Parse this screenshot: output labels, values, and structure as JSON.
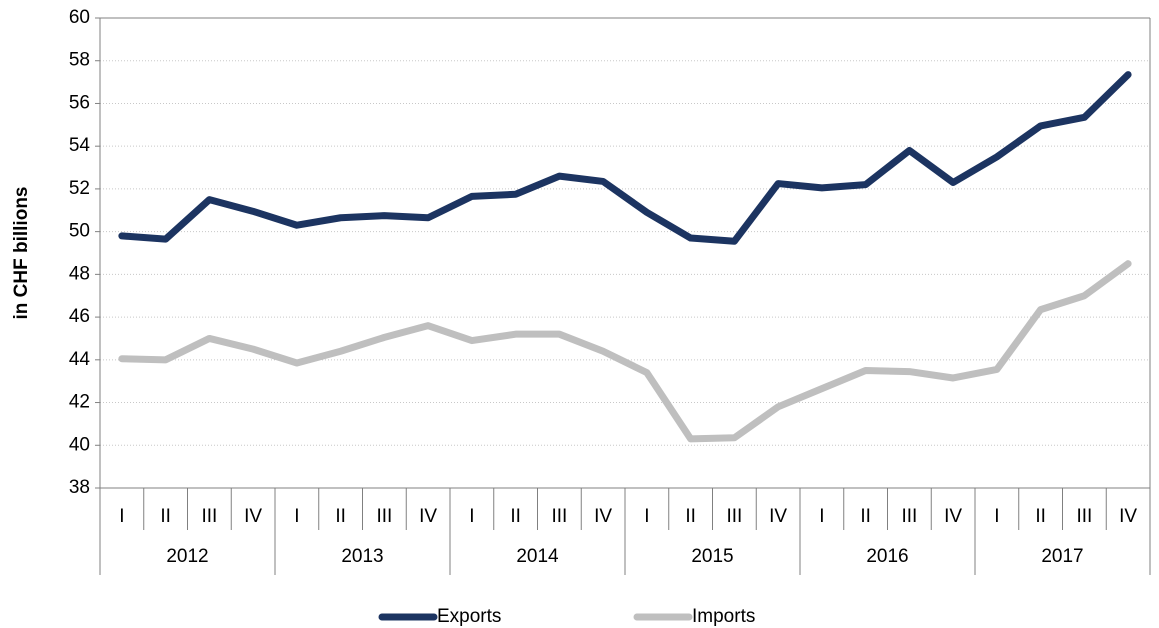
{
  "chart_data": {
    "type": "line",
    "y_label": "in CHF billions",
    "categories": [
      "I",
      "II",
      "III",
      "IV",
      "I",
      "II",
      "III",
      "IV",
      "I",
      "II",
      "III",
      "IV",
      "I",
      "II",
      "III",
      "IV",
      "I",
      "II",
      "III",
      "IV",
      "I",
      "II",
      "III",
      "IV"
    ],
    "years": [
      "2012",
      "2013",
      "2014",
      "2015",
      "2016",
      "2017"
    ],
    "series": [
      {
        "name": "Exports",
        "color": "#1c3461",
        "values": [
          49.8,
          49.65,
          51.5,
          50.95,
          50.3,
          50.65,
          50.75,
          50.65,
          51.65,
          51.75,
          52.6,
          52.35,
          50.9,
          49.7,
          49.55,
          52.25,
          52.05,
          52.2,
          53.8,
          52.3,
          53.5,
          54.95,
          55.35,
          57.35
        ]
      },
      {
        "name": "Imports",
        "color": "#bfbfbf",
        "values": [
          44.05,
          44.0,
          45.0,
          44.5,
          43.85,
          44.4,
          45.05,
          45.6,
          44.9,
          45.2,
          45.2,
          44.4,
          43.4,
          40.3,
          40.35,
          41.8,
          42.65,
          43.5,
          43.45,
          43.15,
          43.55,
          46.35,
          47.0,
          48.5
        ]
      }
    ],
    "ylim": [
      38,
      60
    ],
    "yticks": [
      38,
      40,
      42,
      44,
      46,
      48,
      50,
      52,
      54,
      56,
      58,
      60
    ],
    "grid": true,
    "legend": "bottom"
  }
}
